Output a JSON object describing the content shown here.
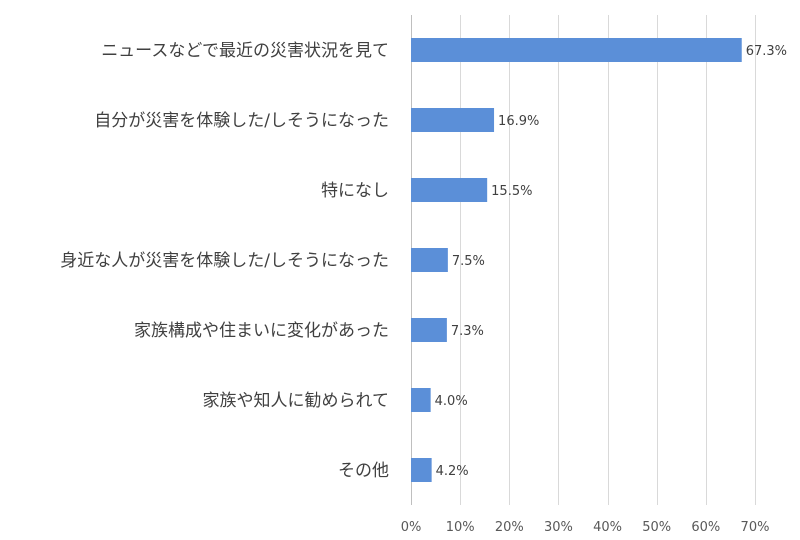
{
  "chart_data": {
    "type": "bar",
    "orientation": "horizontal",
    "categories": [
      "ニュースなどで最近の災害状況を見て",
      "自分が災害を体験した/しそうになった",
      "特になし",
      "身近な人が災害を体験した/しそうになった",
      "家族構成や住まいに変化があった",
      "家族や知人に勧められて",
      "その他"
    ],
    "values": [
      67.3,
      16.9,
      15.5,
      7.5,
      7.3,
      4.0,
      4.2
    ],
    "value_labels": [
      "67.3%",
      "16.9%",
      "15.5%",
      "7.5%",
      "7.3%",
      "4.0%",
      "4.2%"
    ],
    "xlim": [
      0,
      70
    ],
    "xticks": [
      0,
      10,
      20,
      30,
      40,
      50,
      60,
      70
    ],
    "xtick_labels": [
      "0%",
      "10%",
      "20%",
      "30%",
      "40%",
      "50%",
      "60%",
      "70%"
    ],
    "grid": true,
    "legend": "none",
    "bar_color": "#5b8fd8"
  }
}
